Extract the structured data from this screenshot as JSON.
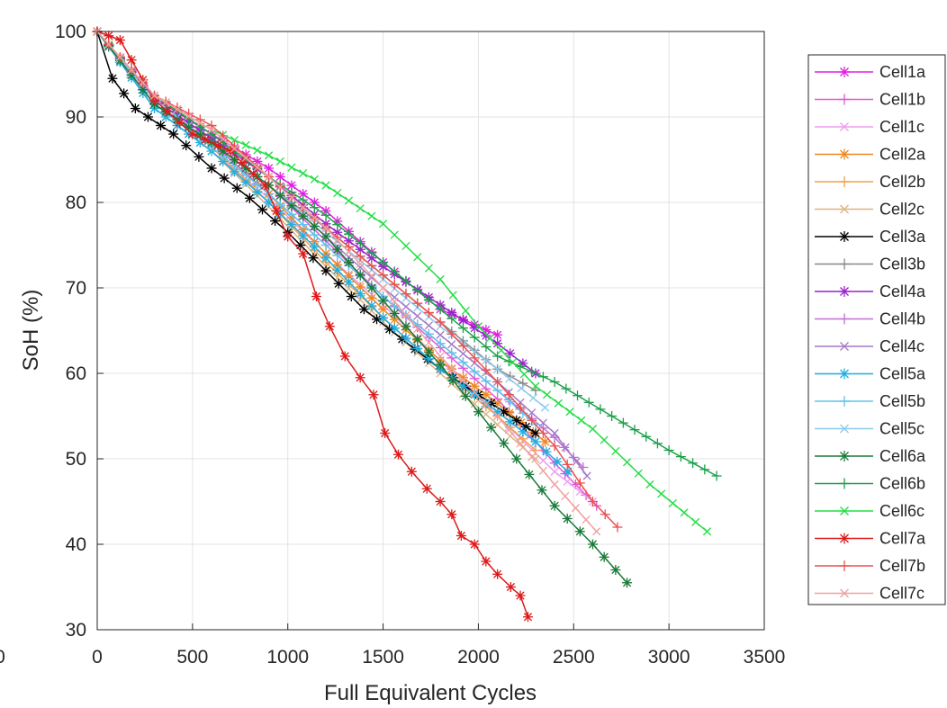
{
  "chart_data": {
    "type": "line",
    "xlabel": "Full Equivalent Cycles",
    "ylabel": "SoH (%)",
    "xlim": [
      0,
      3500
    ],
    "ylim": [
      30,
      100
    ],
    "x_ticks": [
      "0",
      "500",
      "1000",
      "1500",
      "2000",
      "2500",
      "3000",
      "3500"
    ],
    "y_ticks": [
      "30",
      "40",
      "50",
      "60",
      "70",
      "80",
      "90",
      "100"
    ],
    "stray_tick_label": "0",
    "grid": true,
    "legend_position": "right",
    "series": [
      {
        "name": "Cell1a",
        "color": "#e020e0",
        "marker": "asterisk",
        "points": [
          [
            0,
            100
          ],
          [
            300,
            92.2
          ],
          [
            600,
            88
          ],
          [
            900,
            84
          ],
          [
            1200,
            79
          ],
          [
            1500,
            73
          ],
          [
            1800,
            67.5
          ],
          [
            2100,
            64.5
          ]
        ]
      },
      {
        "name": "Cell1b",
        "color": "#e255d8",
        "marker": "plus",
        "points": [
          [
            0,
            100
          ],
          [
            300,
            91.5
          ],
          [
            600,
            87
          ],
          [
            900,
            82
          ],
          [
            1200,
            75.5
          ],
          [
            1500,
            69
          ],
          [
            1800,
            63
          ],
          [
            2100,
            57
          ],
          [
            2400,
            49.5
          ],
          [
            2620,
            44.5
          ]
        ]
      },
      {
        "name": "Cell1c",
        "color": "#ee9cee",
        "marker": "cross",
        "points": [
          [
            0,
            100
          ],
          [
            300,
            91
          ],
          [
            600,
            86
          ],
          [
            900,
            80.5
          ],
          [
            1200,
            74
          ],
          [
            1500,
            68
          ],
          [
            1800,
            61.5
          ],
          [
            2100,
            55
          ],
          [
            2400,
            48.5
          ],
          [
            2600,
            45
          ]
        ]
      },
      {
        "name": "Cell2a",
        "color": "#ee8820",
        "marker": "asterisk",
        "points": [
          [
            0,
            100
          ],
          [
            300,
            92
          ],
          [
            600,
            87
          ],
          [
            900,
            81
          ],
          [
            1200,
            74
          ],
          [
            1500,
            67.5
          ],
          [
            1800,
            61.5
          ],
          [
            2100,
            56.5
          ],
          [
            2350,
            52
          ]
        ]
      },
      {
        "name": "Cell2b",
        "color": "#f2a24c",
        "marker": "plus",
        "points": [
          [
            0,
            100
          ],
          [
            300,
            91.5
          ],
          [
            600,
            86.5
          ],
          [
            900,
            80
          ],
          [
            1200,
            73
          ],
          [
            1500,
            66.5
          ],
          [
            1800,
            60.5
          ],
          [
            2100,
            55
          ],
          [
            2300,
            51
          ]
        ]
      },
      {
        "name": "Cell2c",
        "color": "#deb483",
        "marker": "cross",
        "points": [
          [
            0,
            100
          ],
          [
            300,
            91
          ],
          [
            600,
            86
          ],
          [
            900,
            79.5
          ],
          [
            1200,
            72.5
          ],
          [
            1500,
            66
          ],
          [
            1800,
            60
          ],
          [
            2100,
            54
          ],
          [
            2300,
            50
          ]
        ]
      },
      {
        "name": "Cell3a",
        "color": "#000000",
        "marker": "asterisk",
        "points": [
          [
            0,
            100
          ],
          [
            80,
            94.5
          ],
          [
            200,
            91
          ],
          [
            400,
            88
          ],
          [
            600,
            84
          ],
          [
            800,
            80.5
          ],
          [
            1000,
            76.5
          ],
          [
            1200,
            72
          ],
          [
            1400,
            67.5
          ],
          [
            1600,
            64
          ],
          [
            1800,
            60.5
          ],
          [
            2000,
            57.5
          ],
          [
            2200,
            54.5
          ],
          [
            2300,
            53
          ]
        ]
      },
      {
        "name": "Cell3b",
        "color": "#888888",
        "marker": "plus",
        "points": [
          [
            0,
            100
          ],
          [
            300,
            91.5
          ],
          [
            600,
            87
          ],
          [
            900,
            82
          ],
          [
            1200,
            77
          ],
          [
            1500,
            71.5
          ],
          [
            1800,
            66
          ],
          [
            2100,
            60.5
          ],
          [
            2300,
            58
          ]
        ]
      },
      {
        "name": "Cell4a",
        "color": "#9a22cc",
        "marker": "asterisk",
        "points": [
          [
            0,
            100
          ],
          [
            300,
            92
          ],
          [
            600,
            87.5
          ],
          [
            900,
            83
          ],
          [
            1200,
            77.5
          ],
          [
            1500,
            72.5
          ],
          [
            1800,
            68
          ],
          [
            2100,
            63.5
          ],
          [
            2300,
            60
          ]
        ]
      },
      {
        "name": "Cell4b",
        "color": "#c36ed8",
        "marker": "plus",
        "points": [
          [
            0,
            100
          ],
          [
            300,
            91.5
          ],
          [
            600,
            87
          ],
          [
            900,
            81
          ],
          [
            1200,
            75
          ],
          [
            1500,
            69
          ],
          [
            1800,
            63.5
          ],
          [
            2100,
            58
          ],
          [
            2400,
            52.5
          ],
          [
            2550,
            49
          ]
        ]
      },
      {
        "name": "Cell4c",
        "color": "#a07ac8",
        "marker": "cross",
        "points": [
          [
            0,
            100
          ],
          [
            300,
            91.5
          ],
          [
            600,
            87
          ],
          [
            900,
            82
          ],
          [
            1200,
            76
          ],
          [
            1500,
            70
          ],
          [
            1800,
            64.5
          ],
          [
            2100,
            59
          ],
          [
            2400,
            53
          ],
          [
            2570,
            48
          ]
        ]
      },
      {
        "name": "Cell5a",
        "color": "#1eaee0",
        "marker": "asterisk",
        "points": [
          [
            0,
            100
          ],
          [
            300,
            91
          ],
          [
            600,
            86
          ],
          [
            900,
            80
          ],
          [
            1200,
            73.5
          ],
          [
            1500,
            66.5
          ],
          [
            1800,
            60.5
          ],
          [
            2100,
            55.5
          ],
          [
            2300,
            52
          ],
          [
            2470,
            48.5
          ]
        ]
      },
      {
        "name": "Cell5b",
        "color": "#5ec4ea",
        "marker": "plus",
        "points": [
          [
            0,
            100
          ],
          [
            300,
            91.5
          ],
          [
            600,
            86.5
          ],
          [
            900,
            81
          ],
          [
            1200,
            75
          ],
          [
            1500,
            69
          ],
          [
            1800,
            63.5
          ],
          [
            2100,
            58
          ],
          [
            2300,
            54
          ]
        ]
      },
      {
        "name": "Cell5c",
        "color": "#8ccaee",
        "marker": "cross",
        "points": [
          [
            0,
            100
          ],
          [
            300,
            92
          ],
          [
            600,
            87
          ],
          [
            900,
            82
          ],
          [
            1200,
            76.5
          ],
          [
            1500,
            71
          ],
          [
            1800,
            65.5
          ],
          [
            2100,
            60.5
          ],
          [
            2350,
            56
          ]
        ]
      },
      {
        "name": "Cell6a",
        "color": "#1a7a3a",
        "marker": "asterisk",
        "points": [
          [
            0,
            100
          ],
          [
            300,
            91.5
          ],
          [
            600,
            87
          ],
          [
            900,
            82
          ],
          [
            1200,
            76
          ],
          [
            1500,
            68.5
          ],
          [
            1800,
            61
          ],
          [
            2000,
            55.5
          ],
          [
            2200,
            50
          ],
          [
            2400,
            44.5
          ],
          [
            2600,
            40
          ],
          [
            2780,
            35.5
          ]
        ]
      },
      {
        "name": "Cell6b",
        "color": "#1aa04a",
        "marker": "plus",
        "points": [
          [
            0,
            100
          ],
          [
            300,
            92.5
          ],
          [
            600,
            88
          ],
          [
            900,
            83
          ],
          [
            1200,
            78.5
          ],
          [
            1500,
            73
          ],
          [
            1800,
            67.5
          ],
          [
            2100,
            62
          ],
          [
            2400,
            59
          ],
          [
            2700,
            55
          ],
          [
            3000,
            51
          ],
          [
            3250,
            48
          ]
        ]
      },
      {
        "name": "Cell6c",
        "color": "#22dd44",
        "marker": "cross",
        "points": [
          [
            0,
            100
          ],
          [
            300,
            92.5
          ],
          [
            600,
            88.5
          ],
          [
            900,
            85.5
          ],
          [
            1200,
            82
          ],
          [
            1500,
            77.5
          ],
          [
            1800,
            71
          ],
          [
            2000,
            65.5
          ],
          [
            2300,
            58.5
          ],
          [
            2600,
            53.5
          ],
          [
            2900,
            47
          ],
          [
            3200,
            41.5
          ]
        ]
      },
      {
        "name": "Cell7a",
        "color": "#dd1a1a",
        "marker": "asterisk",
        "points": [
          [
            0,
            100
          ],
          [
            120,
            99
          ],
          [
            300,
            92
          ],
          [
            500,
            88
          ],
          [
            700,
            86
          ],
          [
            880,
            82
          ],
          [
            1000,
            76
          ],
          [
            1080,
            74
          ],
          [
            1150,
            69
          ],
          [
            1220,
            65.5
          ],
          [
            1300,
            62
          ],
          [
            1380,
            59.5
          ],
          [
            1450,
            57.5
          ],
          [
            1510,
            53
          ],
          [
            1580,
            50.5
          ],
          [
            1650,
            48.5
          ],
          [
            1730,
            46.5
          ],
          [
            1800,
            45
          ],
          [
            1860,
            43.5
          ],
          [
            1910,
            41
          ],
          [
            1980,
            40
          ],
          [
            2040,
            38
          ],
          [
            2100,
            36.5
          ],
          [
            2170,
            35
          ],
          [
            2220,
            34
          ],
          [
            2260,
            31.5
          ]
        ]
      },
      {
        "name": "Cell7b",
        "color": "#ea5050",
        "marker": "plus",
        "points": [
          [
            0,
            100
          ],
          [
            300,
            92.5
          ],
          [
            600,
            89
          ],
          [
            900,
            83
          ],
          [
            1200,
            77
          ],
          [
            1500,
            71.5
          ],
          [
            1800,
            66
          ],
          [
            2100,
            59
          ],
          [
            2400,
            51.5
          ],
          [
            2600,
            45
          ],
          [
            2730,
            42
          ]
        ]
      },
      {
        "name": "Cell7c",
        "color": "#f0a0a0",
        "marker": "cross",
        "points": [
          [
            0,
            100
          ],
          [
            300,
            92.5
          ],
          [
            600,
            88.5
          ],
          [
            900,
            83
          ],
          [
            1200,
            77
          ],
          [
            1500,
            70
          ],
          [
            1800,
            62
          ],
          [
            2100,
            55
          ],
          [
            2400,
            47
          ],
          [
            2620,
            41.5
          ]
        ]
      }
    ]
  }
}
